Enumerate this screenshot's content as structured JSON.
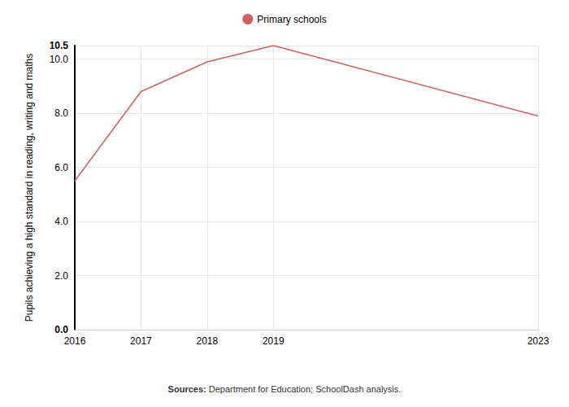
{
  "chart_data": {
    "type": "line",
    "y_label": "Pupils achieving a high standard in reading, writing and maths",
    "x": [
      2016,
      2017,
      2018,
      2019,
      2023
    ],
    "series": [
      {
        "name": "Primary schools",
        "color": "#d2605e",
        "values": [
          5.5,
          8.8,
          9.9,
          10.5,
          7.9
        ]
      }
    ],
    "xlim": [
      2016,
      2023
    ],
    "xticks": [
      2016,
      2017,
      2018,
      2019,
      2023
    ],
    "ylim": [
      0,
      10.5
    ],
    "yticks": [
      {
        "value": 0,
        "label": "0.0"
      },
      {
        "value": 2,
        "label": "2.0"
      },
      {
        "value": 4,
        "label": "4.0"
      },
      {
        "value": 6,
        "label": "6.0"
      },
      {
        "value": 8,
        "label": "8.0"
      },
      {
        "value": 10,
        "label": "10.0"
      },
      10.5
    ],
    "grid": true,
    "legend": "top",
    "marker": "none",
    "source_label": "Sources:",
    "source": "Department for Education; SchoolDash analysis."
  }
}
